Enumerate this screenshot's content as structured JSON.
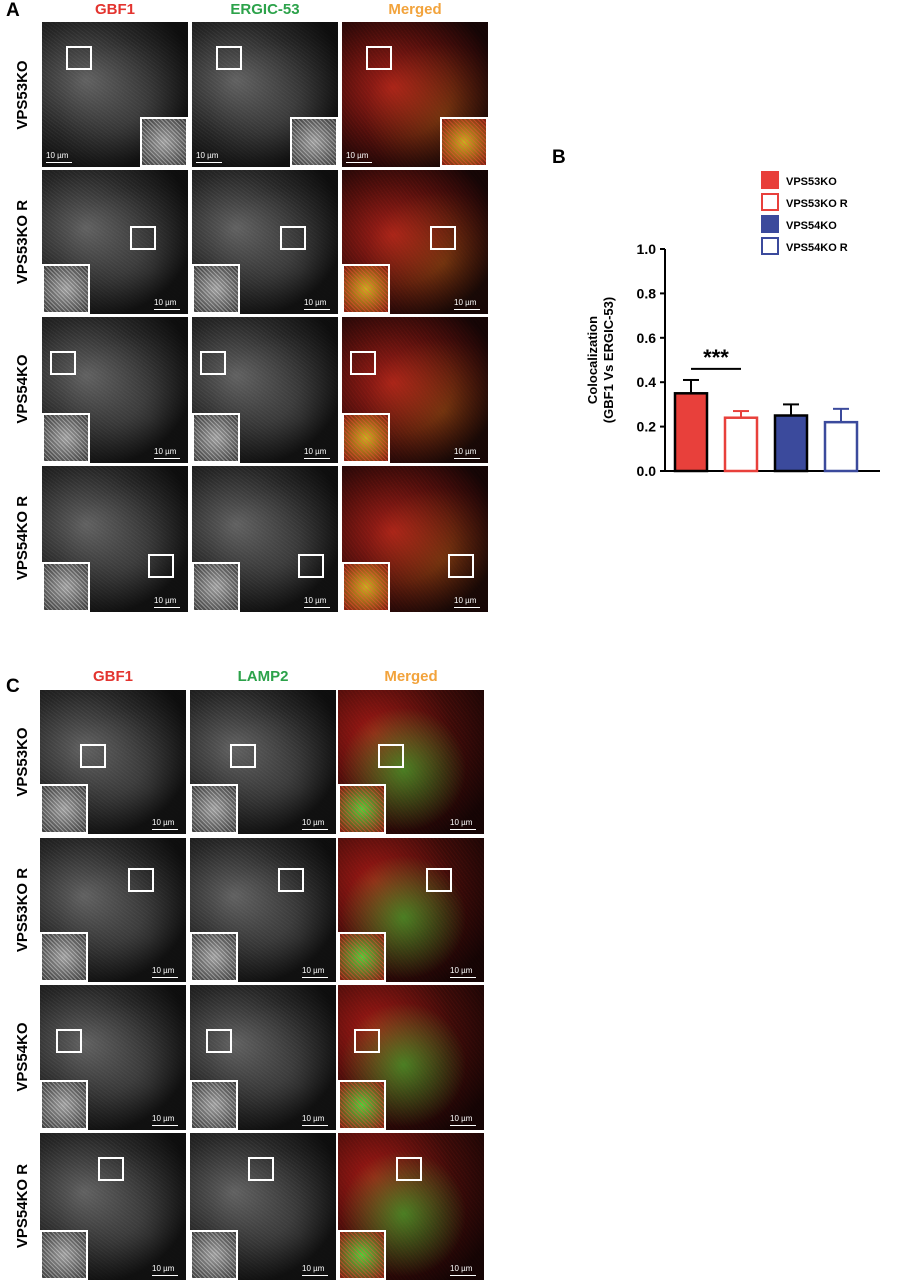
{
  "panel_letters": {
    "a": "A",
    "b": "B",
    "c": "C"
  },
  "panel_a": {
    "columns": [
      {
        "label": "GBF1",
        "color": "#e3342f"
      },
      {
        "label": "ERGIC-53",
        "color": "#2ca24a"
      },
      {
        "label": "Merged",
        "color": "#f2a33c"
      }
    ],
    "rows": [
      "VPS53KO",
      "VPS53KO R",
      "VPS54KO",
      "VPS54KO R"
    ]
  },
  "panel_c": {
    "columns": [
      {
        "label": "GBF1",
        "color": "#e3342f"
      },
      {
        "label": "LAMP2",
        "color": "#2ca24a"
      },
      {
        "label": "Merged",
        "color": "#f2a33c"
      }
    ],
    "rows": [
      "VPS53KO",
      "VPS53KO R",
      "VPS54KO",
      "VPS54KO R"
    ]
  },
  "scale_bar_label": "10 µm",
  "chart_data": {
    "type": "bar",
    "categories": [
      "VPS53KO",
      "VPS53KO R",
      "VPS54KO",
      "VPS54KO R"
    ],
    "values": [
      0.35,
      0.24,
      0.25,
      0.22
    ],
    "errors": [
      0.06,
      0.03,
      0.05,
      0.06
    ],
    "fill": [
      "solid",
      "hollow",
      "solid",
      "hollow"
    ],
    "colors": [
      "#e8403b",
      "#e8403b",
      "#3b4a9c",
      "#3b4a9c"
    ],
    "ylabel_lines": [
      "Colocalization",
      "(GBF1 Vs ERGIC-53)"
    ],
    "ylim": [
      0,
      1.0
    ],
    "yticks": [
      "0.0",
      "0.2",
      "0.4",
      "0.6",
      "0.8",
      "1.0"
    ],
    "significance": {
      "between": [
        "VPS53KO",
        "VPS53KO R"
      ],
      "label": "***"
    },
    "legend_position": "top-right",
    "grid": false
  }
}
